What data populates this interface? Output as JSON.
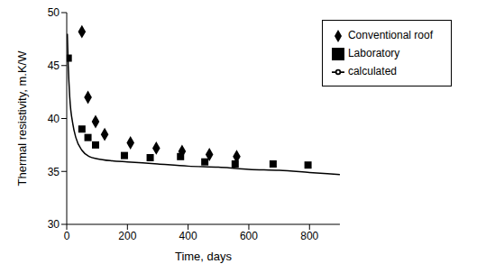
{
  "chart_data": {
    "type": "scatter",
    "x_label": "Time, days",
    "y_label": "Thermal resistivity, m.K/W",
    "xlim": [
      0,
      900
    ],
    "xticks": [
      0,
      200,
      400,
      600,
      800
    ],
    "ylim": [
      30,
      50
    ],
    "yticks": [
      30,
      35,
      40,
      45,
      50
    ],
    "grid": false,
    "legend": "upper right",
    "series": [
      {
        "name": "Laboratory",
        "type": "scatter",
        "marker": "square",
        "color": "#000000",
        "x": [
          5,
          50,
          70,
          95,
          190,
          275,
          375,
          455,
          555,
          680,
          795
        ],
        "values": [
          45.7,
          39,
          38.2,
          37.5,
          36.5,
          36.3,
          36.4,
          35.9,
          35.7,
          35.7,
          35.6
        ]
      },
      {
        "name": "Conventional roof",
        "type": "scatter",
        "marker": "diamond",
        "color": "#000000",
        "x": [
          50,
          70,
          95,
          125,
          210,
          295,
          380,
          470,
          560
        ],
        "values": [
          48.2,
          42,
          39.7,
          38.5,
          37.7,
          37.2,
          36.9,
          36.6,
          36.4
        ]
      },
      {
        "name": "calculated",
        "type": "line",
        "line_style": "solid",
        "color": "#000000",
        "x": [
          2,
          5,
          10,
          20,
          30,
          50,
          75,
          100,
          150,
          200,
          300,
          400,
          500,
          600,
          700,
          800,
          900
        ],
        "values": [
          48,
          45,
          42,
          39.5,
          38.2,
          37,
          36.4,
          36.2,
          36,
          35.9,
          35.7,
          35.5,
          35.4,
          35.2,
          35.1,
          34.9,
          34.7
        ]
      }
    ]
  }
}
